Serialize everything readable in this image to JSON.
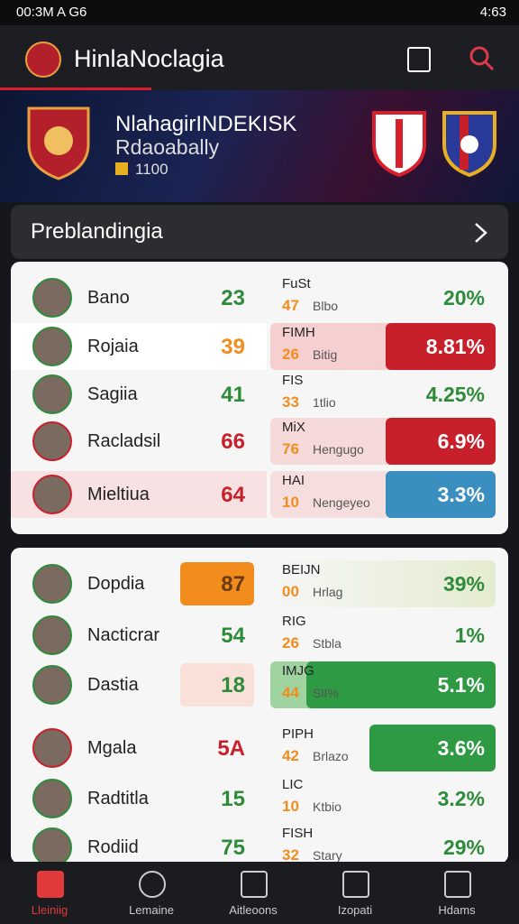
{
  "status": {
    "left": "00:3M A G6",
    "right": "4:63"
  },
  "header": {
    "title": "HinlaNoclagia"
  },
  "hero": {
    "title": "NlahagirINDEKISK",
    "subtitle": "Rdaoabally",
    "points": "1100"
  },
  "section": {
    "title": "Preblandingia"
  },
  "cards": [
    {
      "rows": [
        {
          "name": "Bano",
          "score": "23",
          "code": "FuSt",
          "rank": "47",
          "sub": "Blbo",
          "pct": "20%"
        },
        {
          "name": "Rojaia",
          "score": "39",
          "code": "FIMH",
          "rank": "26",
          "sub": "Bitig",
          "pct": "8.81%"
        },
        {
          "name": "Sagiia",
          "score": "41",
          "code": "FIS",
          "rank": "33",
          "sub": "1tlio",
          "pct": "4.25%"
        },
        {
          "name": "Racladsil",
          "score": "66",
          "code": "MiX",
          "rank": "76",
          "sub": "Hengugo",
          "pct": "6.9%"
        },
        {
          "name": "Mieltiua",
          "score": "64",
          "code": "HAI",
          "rank": "10",
          "sub": "Nengeyeo",
          "pct": "3.3%"
        }
      ]
    },
    {
      "rows": [
        {
          "name": "Dopdia",
          "score": "87",
          "code": "BEIJN",
          "rank": "00",
          "sub": "Hrlag",
          "pct": "39%"
        },
        {
          "name": "Nacticrar",
          "score": "54",
          "code": "RIG",
          "rank": "26",
          "sub": "Stbla",
          "pct": "1%"
        },
        {
          "name": "Dastia",
          "score": "18",
          "code": "IMJG",
          "rank": "44",
          "sub": "SlI%",
          "pct": "5.1%"
        },
        {
          "name": "Mgala",
          "score": "5A",
          "code": "PIPH",
          "rank": "42",
          "sub": "Brlazo",
          "pct": "3.6%"
        },
        {
          "name": "Radtitla",
          "score": "15",
          "code": "LIC",
          "rank": "10",
          "sub": "Ktbio",
          "pct": "3.2%"
        },
        {
          "name": "Rodiid",
          "score": "75",
          "code": "FISH",
          "rank": "32",
          "sub": "Stary",
          "pct": "29%"
        }
      ]
    }
  ],
  "nav": [
    "Lleiniig",
    "Lemaine",
    "Aitleoons",
    "Izopati",
    "Hdams"
  ]
}
